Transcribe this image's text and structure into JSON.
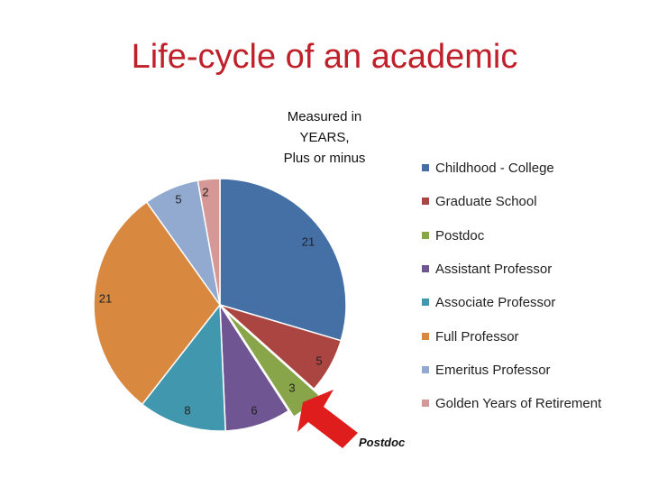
{
  "slide": {
    "title": "Life-cycle of an academic"
  },
  "chart_data": {
    "type": "pie",
    "title": "",
    "subtitle_lines": [
      "Measured in",
      "YEARS,",
      "Plus or minus"
    ],
    "categories": [
      "Childhood - College",
      "Graduate School",
      "Postdoc",
      "Assistant Professor",
      "Associate Professor",
      "Full Professor",
      "Emeritus Professor",
      "Golden Years of Retirement"
    ],
    "values": [
      21,
      5,
      3,
      6,
      8,
      21,
      5,
      2
    ],
    "colors": [
      "#4470a6",
      "#aa4542",
      "#88a54a",
      "#6f5591",
      "#4198ae",
      "#d98840",
      "#92a9d0",
      "#d69896"
    ],
    "legend": {
      "position": "right"
    },
    "exploded_index": 2,
    "annotation": {
      "text": "Postdoc",
      "arrow_color": "#e01d1d",
      "target": "Postdoc"
    }
  }
}
